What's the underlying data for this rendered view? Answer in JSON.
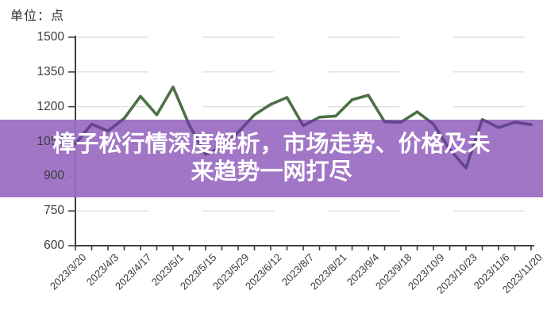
{
  "banner": {
    "title": "樟子松行情深度解析，市场走势、价格及未来趋势一网打尽",
    "title_lines": [
      "樟子松行情深度解析，市场走势、价格及未",
      "来趋势一网打尽"
    ]
  },
  "chart_data": {
    "type": "line",
    "title": "樟子松行情深度解析，市场走势、价格及未来趋势一网打尽",
    "unit_label": "单位：点",
    "unit": "点",
    "ylim": [
      600,
      1500
    ],
    "yticks": [
      600,
      750,
      900,
      1050,
      1200,
      1350,
      1500
    ],
    "grid": "dashed-horizontal",
    "legend": "none",
    "x_labels": [
      "2023/3/20",
      "2023/4/3",
      "2023/4/17",
      "2023/5/1",
      "2023/5/15",
      "2023/5/29",
      "2023/6/12",
      "2023/8/7",
      "2023/8/21",
      "2023/9/4",
      "2023/9/18",
      "2023/10/9",
      "2023/10/23",
      "2023/11/6",
      "2023/11/20"
    ],
    "label_every": 2,
    "series": [
      {
        "name": "",
        "values": [
          1040,
          1125,
          1095,
          1150,
          1245,
          1165,
          1285,
          1120,
          995,
          1025,
          1090,
          1165,
          1210,
          1240,
          1118,
          1155,
          1160,
          1230,
          1250,
          1135,
          1133,
          1178,
          1125,
          1015,
          935,
          1145,
          1110,
          1133,
          1123
        ]
      }
    ]
  },
  "colors": {
    "line": "#4d7145",
    "line_under_banner": "#5e4387",
    "banner_bg": "#9a6cc2",
    "banner_text": "#ffffff",
    "grid": "#d9d9d9",
    "axis": "#3f3f3f",
    "tick_text": "#3a3a3a"
  }
}
